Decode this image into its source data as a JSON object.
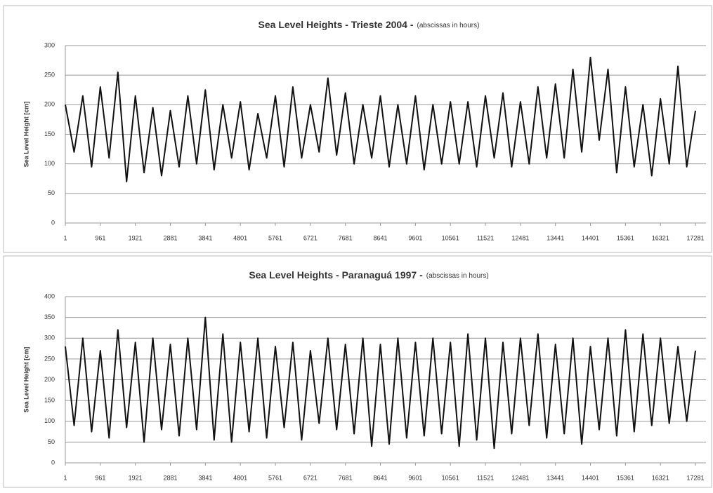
{
  "chart_data": [
    {
      "type": "line",
      "title": "Sea Level Heights - Trieste 2004 -",
      "subtitle": "(abscissas in hours)",
      "y_label": "Sea Level Height [cm]",
      "x": [
        1,
        241,
        481,
        721,
        961,
        1201,
        1441,
        1681,
        1921,
        2161,
        2401,
        2641,
        2881,
        3121,
        3361,
        3601,
        3841,
        4081,
        4321,
        4561,
        4801,
        5041,
        5281,
        5521,
        5761,
        6001,
        6241,
        6481,
        6721,
        6961,
        7201,
        7441,
        7681,
        7921,
        8161,
        8401,
        8641,
        8881,
        9121,
        9361,
        9601,
        9841,
        10081,
        10321,
        10561,
        10801,
        11041,
        11281,
        11521,
        11761,
        12001,
        12241,
        12481,
        12721,
        12961,
        13201,
        13441,
        13681,
        13921,
        14161,
        14401,
        14641,
        14881,
        15121,
        15361,
        15601,
        15841,
        16081,
        16321,
        16561,
        16801,
        17041,
        17281
      ],
      "series": [
        {
          "color": "#111111",
          "values": [
            200,
            120,
            215,
            95,
            230,
            110,
            255,
            70,
            215,
            85,
            195,
            80,
            190,
            95,
            215,
            100,
            225,
            90,
            200,
            110,
            205,
            90,
            185,
            110,
            215,
            95,
            230,
            110,
            200,
            120,
            245,
            115,
            220,
            100,
            200,
            110,
            215,
            95,
            200,
            100,
            215,
            90,
            200,
            100,
            205,
            100,
            205,
            95,
            215,
            110,
            220,
            95,
            205,
            100,
            230,
            110,
            235,
            110,
            260,
            120,
            280,
            140,
            260,
            85,
            230,
            95,
            200,
            80,
            210,
            100,
            265,
            95,
            190
          ]
        }
      ],
      "xlim": [
        1,
        17569
      ],
      "xticks": [
        1,
        961,
        1921,
        2881,
        3841,
        4801,
        5761,
        6721,
        7681,
        8641,
        9601,
        10561,
        11521,
        12481,
        13441,
        14401,
        15361,
        16321,
        17281
      ],
      "ylim": [
        0,
        300
      ],
      "yticks": [
        0,
        50,
        100,
        150,
        200,
        250,
        300
      ],
      "grid": true
    },
    {
      "type": "line",
      "title": "Sea Level Heights - Paranaguá 1997 -",
      "subtitle": "(abscissas in hours)",
      "y_label": "Sea Level Height [cm]",
      "x": [
        1,
        241,
        481,
        721,
        961,
        1201,
        1441,
        1681,
        1921,
        2161,
        2401,
        2641,
        2881,
        3121,
        3361,
        3601,
        3841,
        4081,
        4321,
        4561,
        4801,
        5041,
        5281,
        5521,
        5761,
        6001,
        6241,
        6481,
        6721,
        6961,
        7201,
        7441,
        7681,
        7921,
        8161,
        8401,
        8641,
        8881,
        9121,
        9361,
        9601,
        9841,
        10081,
        10321,
        10561,
        10801,
        11041,
        11281,
        11521,
        11761,
        12001,
        12241,
        12481,
        12721,
        12961,
        13201,
        13441,
        13681,
        13921,
        14161,
        14401,
        14641,
        14881,
        15121,
        15361,
        15601,
        15841,
        16081,
        16321,
        16561,
        16801,
        17041,
        17281
      ],
      "series": [
        {
          "color": "#111111",
          "values": [
            280,
            90,
            300,
            75,
            270,
            60,
            320,
            85,
            290,
            50,
            300,
            80,
            285,
            65,
            300,
            80,
            350,
            55,
            310,
            50,
            290,
            75,
            300,
            60,
            280,
            85,
            290,
            55,
            270,
            95,
            300,
            80,
            285,
            70,
            300,
            40,
            285,
            45,
            300,
            60,
            290,
            65,
            300,
            70,
            290,
            40,
            310,
            55,
            300,
            35,
            290,
            70,
            300,
            90,
            310,
            60,
            285,
            70,
            300,
            45,
            280,
            80,
            300,
            65,
            320,
            75,
            310,
            90,
            300,
            95,
            280,
            100,
            270
          ]
        }
      ],
      "xlim": [
        1,
        17569
      ],
      "xticks": [
        1,
        961,
        1921,
        2881,
        3841,
        4801,
        5761,
        6721,
        7681,
        8641,
        9601,
        10561,
        11521,
        12481,
        13441,
        14401,
        15361,
        16321,
        17281
      ],
      "ylim": [
        0,
        400
      ],
      "yticks": [
        0,
        50,
        100,
        150,
        200,
        250,
        300,
        350,
        400
      ],
      "grid": true
    }
  ]
}
